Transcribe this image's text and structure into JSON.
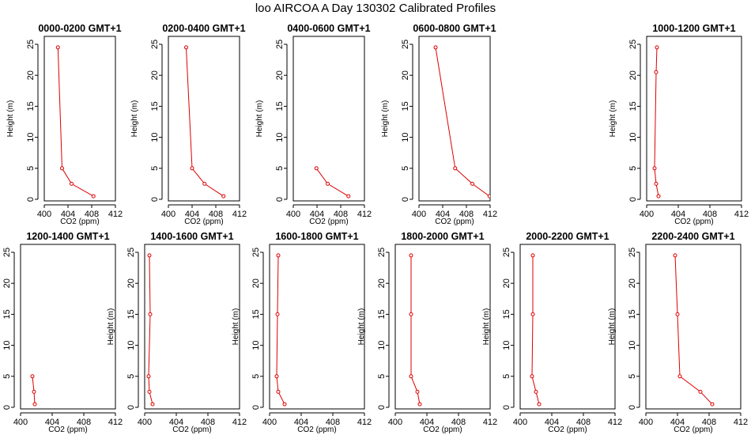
{
  "title": "loo AIRCOA A  Day 130302  Calibrated Profiles",
  "colors": {
    "series": "#dd0000",
    "axis": "#000000"
  },
  "chart_data": [
    {
      "type": "line",
      "title": "0000-0200 GMT+1",
      "xlabel": "CO2 (ppm)",
      "ylabel": "Height (m)",
      "xlim": [
        400,
        412
      ],
      "ylim": [
        0,
        25
      ],
      "xticks": [
        "400",
        "404",
        "408",
        "412"
      ],
      "yticks": [
        "0",
        "5",
        "10",
        "15",
        "20",
        "25"
      ],
      "grid": false,
      "points": [
        {
          "x": 402.3,
          "y": 24.5
        },
        {
          "x": 403.0,
          "y": 5.0
        },
        {
          "x": 404.6,
          "y": 2.5
        },
        {
          "x": 408.3,
          "y": 0.5
        }
      ]
    },
    {
      "type": "line",
      "title": "0200-0400 GMT+1",
      "xlabel": "CO2 (ppm)",
      "ylabel": "Height (m)",
      "xlim": [
        400,
        412
      ],
      "ylim": [
        0,
        25
      ],
      "xticks": [
        "400",
        "404",
        "408",
        "412"
      ],
      "yticks": [
        "0",
        "5",
        "10",
        "15",
        "20",
        "25"
      ],
      "grid": false,
      "points": [
        {
          "x": 403.0,
          "y": 24.5
        },
        {
          "x": 404.0,
          "y": 5.0
        },
        {
          "x": 406.1,
          "y": 2.5
        },
        {
          "x": 409.3,
          "y": 0.5
        }
      ]
    },
    {
      "type": "line",
      "title": "0400-0600 GMT+1",
      "xlabel": "CO2 (ppm)",
      "ylabel": "Height (m)",
      "xlim": [
        400,
        412
      ],
      "ylim": [
        0,
        25
      ],
      "xticks": [
        "400",
        "404",
        "408",
        "412"
      ],
      "yticks": [
        "0",
        "5",
        "10",
        "15",
        "20",
        "25"
      ],
      "grid": false,
      "points": [
        {
          "x": 403.9,
          "y": 5.0
        },
        {
          "x": 405.8,
          "y": 2.5
        },
        {
          "x": 409.3,
          "y": 0.5
        }
      ]
    },
    {
      "type": "line",
      "title": "0600-0800 GMT+1",
      "xlabel": "CO2 (ppm)",
      "ylabel": "Height (m)",
      "xlim": [
        400,
        412
      ],
      "ylim": [
        0,
        25
      ],
      "xticks": [
        "400",
        "404",
        "408",
        "412"
      ],
      "yticks": [
        "0",
        "5",
        "10",
        "15",
        "20",
        "25"
      ],
      "grid": false,
      "points": [
        {
          "x": 402.8,
          "y": 24.5
        },
        {
          "x": 406.1,
          "y": 5.0
        },
        {
          "x": 409.0,
          "y": 2.5
        },
        {
          "x": 411.9,
          "y": 0.5
        }
      ]
    },
    {
      "type": "line",
      "title": "1000-1200 GMT+1",
      "xlabel": "CO2 (ppm)",
      "ylabel": "Height (m)",
      "xlim": [
        400,
        412
      ],
      "ylim": [
        0,
        25
      ],
      "xticks": [
        "400",
        "404",
        "408",
        "412"
      ],
      "yticks": [
        "0",
        "5",
        "10",
        "15",
        "20",
        "25"
      ],
      "grid": false,
      "points": [
        {
          "x": 401.3,
          "y": 24.5
        },
        {
          "x": 401.2,
          "y": 20.5
        },
        {
          "x": 401.0,
          "y": 5.0
        },
        {
          "x": 401.2,
          "y": 2.5
        },
        {
          "x": 401.5,
          "y": 0.5
        }
      ]
    },
    {
      "type": "line",
      "title": "1200-1400 GMT+1",
      "xlabel": "CO2 (ppm)",
      "ylabel": "Height (m)",
      "xlim": [
        400,
        412
      ],
      "ylim": [
        0,
        25
      ],
      "xticks": [
        "400",
        "404",
        "408",
        "412"
      ],
      "yticks": [
        "0",
        "5",
        "10",
        "15",
        "20",
        "25"
      ],
      "grid": false,
      "points": [
        {
          "x": 401.5,
          "y": 5.0
        },
        {
          "x": 401.7,
          "y": 2.5
        },
        {
          "x": 401.8,
          "y": 0.5
        }
      ]
    },
    {
      "type": "line",
      "title": "1400-1600 GMT+1",
      "xlabel": "CO2 (ppm)",
      "ylabel": "Height (m)",
      "xlim": [
        400,
        412
      ],
      "ylim": [
        0,
        25
      ],
      "xticks": [
        "400",
        "404",
        "408",
        "412"
      ],
      "yticks": [
        "0",
        "5",
        "10",
        "15",
        "20",
        "25"
      ],
      "grid": false,
      "points": [
        {
          "x": 400.6,
          "y": 24.5
        },
        {
          "x": 400.7,
          "y": 15.0
        },
        {
          "x": 400.5,
          "y": 5.0
        },
        {
          "x": 400.6,
          "y": 2.5
        },
        {
          "x": 401.0,
          "y": 0.5
        }
      ]
    },
    {
      "type": "line",
      "title": "1600-1800 GMT+1",
      "xlabel": "CO2 (ppm)",
      "ylabel": "Height (m)",
      "xlim": [
        400,
        412
      ],
      "ylim": [
        0,
        25
      ],
      "xticks": [
        "400",
        "404",
        "408",
        "412"
      ],
      "yticks": [
        "0",
        "5",
        "10",
        "15",
        "20",
        "25"
      ],
      "grid": false,
      "points": [
        {
          "x": 401.1,
          "y": 24.5
        },
        {
          "x": 401.0,
          "y": 15.0
        },
        {
          "x": 400.9,
          "y": 5.0
        },
        {
          "x": 401.1,
          "y": 2.5
        },
        {
          "x": 401.9,
          "y": 0.5
        }
      ]
    },
    {
      "type": "line",
      "title": "1800-2000 GMT+1",
      "xlabel": "CO2 (ppm)",
      "ylabel": "Height (m)",
      "xlim": [
        400,
        412
      ],
      "ylim": [
        0,
        25
      ],
      "xticks": [
        "400",
        "404",
        "408",
        "412"
      ],
      "yticks": [
        "0",
        "5",
        "10",
        "15",
        "20",
        "25"
      ],
      "grid": false,
      "points": [
        {
          "x": 402.0,
          "y": 24.5
        },
        {
          "x": 402.0,
          "y": 15.0
        },
        {
          "x": 402.0,
          "y": 5.0
        },
        {
          "x": 402.8,
          "y": 2.5
        },
        {
          "x": 403.1,
          "y": 0.5
        }
      ]
    },
    {
      "type": "line",
      "title": "2000-2200 GMT+1",
      "xlabel": "CO2 (ppm)",
      "ylabel": "Height (m)",
      "xlim": [
        400,
        412
      ],
      "ylim": [
        0,
        25
      ],
      "xticks": [
        "400",
        "404",
        "408",
        "412"
      ],
      "yticks": [
        "0",
        "5",
        "10",
        "15",
        "20",
        "25"
      ],
      "grid": false,
      "points": [
        {
          "x": 401.6,
          "y": 24.5
        },
        {
          "x": 401.6,
          "y": 15.0
        },
        {
          "x": 401.5,
          "y": 5.0
        },
        {
          "x": 402.0,
          "y": 2.5
        },
        {
          "x": 402.4,
          "y": 0.5
        }
      ]
    },
    {
      "type": "line",
      "title": "2200-2400 GMT+1",
      "xlabel": "CO2 (ppm)",
      "ylabel": "Height (m)",
      "xlim": [
        400,
        412
      ],
      "ylim": [
        0,
        25
      ],
      "xticks": [
        "400",
        "404",
        "408",
        "412"
      ],
      "yticks": [
        "0",
        "5",
        "10",
        "15",
        "20",
        "25"
      ],
      "grid": false,
      "points": [
        {
          "x": 403.7,
          "y": 24.5
        },
        {
          "x": 404.0,
          "y": 15.0
        },
        {
          "x": 404.3,
          "y": 5.0
        },
        {
          "x": 406.9,
          "y": 2.5
        },
        {
          "x": 408.4,
          "y": 0.5
        }
      ]
    }
  ]
}
